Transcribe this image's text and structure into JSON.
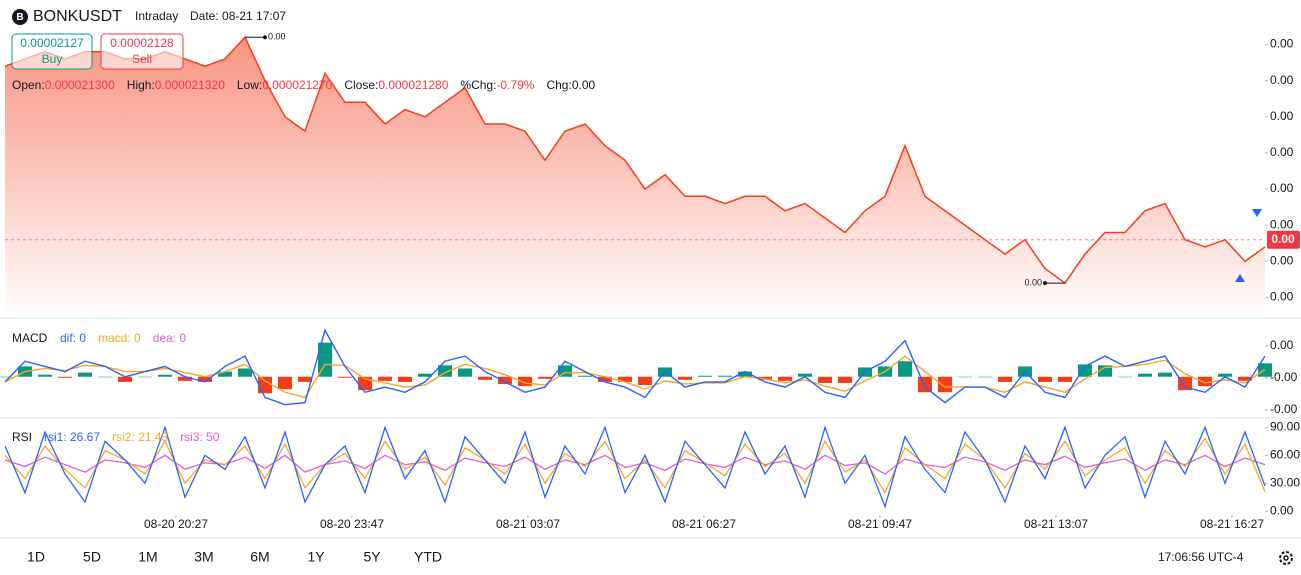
{
  "header": {
    "symbol": "BONKUSDT",
    "mode": "Intraday",
    "date": "Date: 08-21 17:07"
  },
  "quote": {
    "buy_price": "0.00002127",
    "buy": "Buy",
    "sell_price": "0.00002128",
    "sell": "Sell"
  },
  "ohlc": [
    {
      "label": "Open:",
      "value": "0.000021300",
      "color": "#f23645"
    },
    {
      "label": "High:",
      "value": "0.000021320",
      "color": "#f23645"
    },
    {
      "label": "Low:",
      "value": "0.000021270",
      "color": "#f23645"
    },
    {
      "label": "Close:",
      "value": "0.000021280",
      "color": "#f23645"
    },
    {
      "label": "%Chg:",
      "value": "-0.79%",
      "color": "#f23645"
    },
    {
      "label": "Chg:",
      "value": "0.00",
      "color": "#131722"
    }
  ],
  "chart_data": [
    {
      "type": "area",
      "color": "#f23d1a",
      "values": [
        2.152e-05,
        2.153e-05,
        2.154e-05,
        2.153e-05,
        2.154e-05,
        2.154e-05,
        2.153e-05,
        2.153e-05,
        2.154e-05,
        2.153e-05,
        2.152e-05,
        2.153e-05,
        2.156e-05,
        2.15e-05,
        2.145e-05,
        2.143e-05,
        2.151e-05,
        2.147e-05,
        2.147e-05,
        2.144e-05,
        2.146e-05,
        2.145e-05,
        2.147e-05,
        2.149e-05,
        2.144e-05,
        2.144e-05,
        2.143e-05,
        2.139e-05,
        2.143e-05,
        2.144e-05,
        2.141e-05,
        2.139e-05,
        2.135e-05,
        2.137e-05,
        2.134e-05,
        2.134e-05,
        2.133e-05,
        2.134e-05,
        2.134e-05,
        2.132e-05,
        2.133e-05,
        2.131e-05,
        2.129e-05,
        2.132e-05,
        2.134e-05,
        2.141e-05,
        2.134e-05,
        2.132e-05,
        2.13e-05,
        2.128e-05,
        2.126e-05,
        2.128e-05,
        2.124e-05,
        2.122e-05,
        2.126e-05,
        2.129e-05,
        2.129e-05,
        2.132e-05,
        2.133e-05,
        2.128e-05,
        2.127e-05,
        2.128e-05,
        2.125e-05,
        2.127e-05
      ],
      "ylim": [
        2.118e-05,
        2.157e-05
      ],
      "yticks": [
        {
          "value": 2.155e-05,
          "label": "0.00"
        },
        {
          "value": 2.15e-05,
          "label": "0.00"
        },
        {
          "value": 2.145e-05,
          "label": "0.00"
        },
        {
          "value": 2.14e-05,
          "label": "0.00"
        },
        {
          "value": 2.135e-05,
          "label": "0.00"
        },
        {
          "value": 2.13e-05,
          "label": "0.00"
        },
        {
          "value": 2.125e-05,
          "label": "0.00"
        },
        {
          "value": 2.12e-05,
          "label": "0.00"
        }
      ],
      "last_price": {
        "value": 2.128e-05,
        "label": "0.00"
      },
      "max_label": "0.00",
      "min_label": "0.00"
    },
    {
      "type": "macd",
      "title": "MACD",
      "legend": [
        {
          "text": "dif: 0",
          "color": "#2962ff"
        },
        {
          "text": "macd: 0",
          "color": "#f5a623"
        },
        {
          "text": "dea: 0",
          "color": "#e05cd8"
        }
      ],
      "dif": {
        "color": "#2962ff",
        "values": [
          -5e-10,
          1.5e-09,
          1e-09,
          5e-10,
          1.5e-09,
          1e-09,
          0,
          5e-10,
          1e-09,
          0,
          -5e-10,
          1e-09,
          2e-09,
          -2e-09,
          -2.7e-09,
          -2.5e-09,
          4.5e-09,
          1e-09,
          -1.5e-09,
          -1e-09,
          -1.5e-09,
          -5e-10,
          1.5e-09,
          2e-09,
          5e-10,
          -5e-10,
          -1.5e-09,
          -1e-09,
          1.5e-09,
          5e-10,
          -5e-10,
          -1e-09,
          -2e-09,
          5e-10,
          -1e-09,
          -5e-10,
          -5e-10,
          5e-10,
          -5e-10,
          -1e-09,
          0,
          -1.5e-09,
          -2e-09,
          5e-10,
          1.5e-09,
          3.5e-09,
          -1e-09,
          -2.5e-09,
          -1e-09,
          -1e-09,
          -2e-09,
          5e-10,
          -1.5e-09,
          -2e-09,
          1e-09,
          2e-09,
          1e-09,
          1.5e-09,
          2e-09,
          -1e-09,
          -1.5e-09,
          0,
          -1e-09,
          2e-09
        ]
      },
      "dea": {
        "color": "#f5a623",
        "values": [
          -5e-10,
          5e-10,
          8e-10,
          6e-10,
          1.1e-09,
          1e-09,
          5e-10,
          5e-10,
          8e-10,
          4e-10,
          0,
          5e-10,
          1.2e-09,
          -4e-10,
          -1.5e-09,
          -2e-09,
          1.2e-09,
          1.1e-09,
          -2e-10,
          -6e-10,
          -1e-09,
          -8e-10,
          4e-10,
          1.2e-09,
          8e-10,
          2e-10,
          -6e-10,
          -8e-10,
          4e-10,
          4e-10,
          0,
          -5e-10,
          -1.2e-09,
          -4e-10,
          -7e-10,
          -6e-10,
          -6e-10,
          0,
          -2e-10,
          -6e-10,
          -3e-10,
          -9e-10,
          -1.4e-09,
          -4e-10,
          5e-10,
          2e-09,
          5e-10,
          -1e-09,
          -1e-09,
          -1e-09,
          -1.5e-09,
          -5e-10,
          -1e-09,
          -1.5e-09,
          -2e-10,
          9e-10,
          1e-09,
          1.2e-09,
          1.6e-09,
          3e-10,
          -6e-10,
          -3e-10,
          -6e-10,
          7e-10
        ]
      },
      "hist": {
        "up_color": "#089981",
        "down_color": "#f23d1a",
        "values": [
          0,
          1e-09,
          2e-10,
          -1e-10,
          4e-10,
          0,
          -5e-10,
          0,
          2e-10,
          -4e-10,
          -5e-10,
          5e-10,
          8e-10,
          -1.6e-09,
          -1.2e-09,
          -5e-10,
          3.3e-09,
          -1e-10,
          -1.3e-09,
          -4e-10,
          -5e-10,
          3e-10,
          1.1e-09,
          8e-10,
          -3e-10,
          -7e-10,
          -9e-10,
          -2e-10,
          1.1e-09,
          1e-10,
          -5e-10,
          -5e-10,
          -8e-10,
          9e-10,
          -3e-10,
          1e-10,
          1e-10,
          5e-10,
          -3e-10,
          -4e-10,
          3e-10,
          -6e-10,
          -6e-10,
          9e-10,
          1e-09,
          1.5e-09,
          -1.5e-09,
          -1.5e-09,
          0,
          0,
          -5e-10,
          1e-09,
          -5e-10,
          -5e-10,
          1.2e-09,
          1.1e-09,
          0,
          3e-10,
          4e-10,
          -1.3e-09,
          -9e-10,
          3e-10,
          -4e-10,
          1.3e-09
        ]
      },
      "ylim": [
        -3.8e-09,
        5.3e-09
      ],
      "yticks": [
        {
          "value": 3e-09,
          "label": "0.00"
        },
        {
          "value": -1e-10,
          "label": "-0.00"
        },
        {
          "value": -3.2e-09,
          "label": "-0.00"
        }
      ]
    },
    {
      "type": "line",
      "title": "RSI",
      "legend": [
        {
          "text": "rsi1: 26.67",
          "color": "#2962ff"
        },
        {
          "text": "rsi2: 21.43",
          "color": "#f5a623"
        },
        {
          "text": "rsi3: 50",
          "color": "#e05cd8"
        }
      ],
      "series": [
        {
          "color": "#2962ff",
          "values": [
            70,
            20,
            85,
            40,
            10,
            75,
            55,
            30,
            90,
            15,
            60,
            45,
            80,
            25,
            85,
            10,
            50,
            70,
            20,
            90,
            35,
            65,
            10,
            80,
            55,
            30,
            85,
            15,
            70,
            40,
            90,
            20,
            60,
            10,
            75,
            50,
            25,
            85,
            40,
            70,
            15,
            90,
            30,
            60,
            5,
            80,
            45,
            20,
            85,
            55,
            10,
            70,
            35,
            90,
            25,
            60,
            80,
            15,
            75,
            40,
            90,
            30,
            85,
            27
          ]
        },
        {
          "color": "#f5a623",
          "values": [
            60,
            35,
            70,
            45,
            25,
            65,
            55,
            40,
            75,
            30,
            55,
            50,
            70,
            35,
            72,
            25,
            50,
            62,
            35,
            75,
            45,
            58,
            28,
            68,
            55,
            40,
            72,
            30,
            62,
            48,
            75,
            35,
            55,
            25,
            65,
            52,
            38,
            72,
            48,
            62,
            30,
            75,
            42,
            55,
            20,
            68,
            50,
            35,
            72,
            55,
            25,
            62,
            45,
            75,
            38,
            55,
            68,
            30,
            65,
            48,
            78,
            40,
            72,
            21
          ]
        },
        {
          "color": "#e05cd8",
          "values": [
            55,
            48,
            58,
            50,
            42,
            55,
            52,
            47,
            60,
            45,
            52,
            50,
            58,
            46,
            60,
            42,
            50,
            54,
            46,
            60,
            50,
            53,
            44,
            57,
            52,
            48,
            58,
            45,
            55,
            50,
            60,
            47,
            52,
            44,
            56,
            51,
            47,
            58,
            50,
            54,
            45,
            60,
            49,
            52,
            40,
            56,
            50,
            47,
            58,
            53,
            44,
            55,
            50,
            59,
            47,
            52,
            56,
            44,
            55,
            50,
            60,
            48,
            57,
            50
          ]
        }
      ],
      "ylim": [
        -4,
        100
      ],
      "yticks": [
        {
          "value": 90,
          "label": "90.00"
        },
        {
          "value": 60,
          "label": "60.00"
        },
        {
          "value": 30,
          "label": "30.00"
        },
        {
          "value": 0,
          "label": "0.00"
        }
      ],
      "xticks": [
        {
          "value": 8.55,
          "label": "08-20 20:27"
        },
        {
          "value": 17.35,
          "label": "08-20 23:47"
        },
        {
          "value": 26.15,
          "label": "08-21 03:07"
        },
        {
          "value": 34.95,
          "label": "08-21 06:27"
        },
        {
          "value": 43.75,
          "label": "08-21 09:47"
        },
        {
          "value": 52.55,
          "label": "08-21 13:07"
        },
        {
          "value": 61.35,
          "label": "08-21 16:27"
        }
      ]
    }
  ],
  "toolbar": {
    "ranges": [
      "1D",
      "5D",
      "1M",
      "3M",
      "6M",
      "1Y",
      "5Y",
      "YTD"
    ],
    "clock": "17:06:56 UTC-4"
  }
}
